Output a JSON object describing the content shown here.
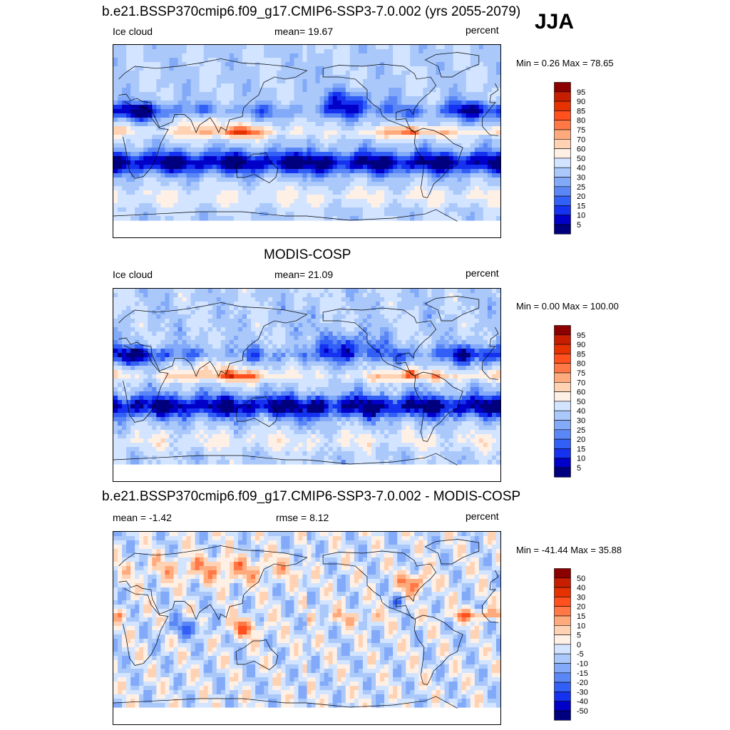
{
  "season": "JJA",
  "colors": {
    "cloud": [
      "#00007f",
      "#0000c8",
      "#1432ef",
      "#325ff5",
      "#5a87f5",
      "#82aaf8",
      "#aac8fa",
      "#d2e4ff",
      "#fff0e6",
      "#ffd2b4",
      "#ffaa7d",
      "#ff7846",
      "#ff501e",
      "#e63200",
      "#c81e00",
      "#8c0000"
    ],
    "diff": [
      "#00007f",
      "#0000c8",
      "#1432ef",
      "#325ff5",
      "#5a87f5",
      "#82aaf8",
      "#aac8fa",
      "#d2e4ff",
      "#fff0e6",
      "#ffd2b4",
      "#ffaa7d",
      "#ff7846",
      "#ff501e",
      "#e63200",
      "#c81e00",
      "#8c0000"
    ]
  },
  "panels": [
    {
      "title": "b.e21.BSSP370cmip6.f09_g17.CMIP6-SSP3-7.0.002 (yrs 2055-2079)",
      "left_label": "Ice cloud",
      "center_label": "mean=  19.67",
      "right_label": "percent",
      "minmax": "Min =   0.26 Max =  78.65",
      "colorbar_levels": [
        "5",
        "10",
        "15",
        "20",
        "25",
        "30",
        "40",
        "50",
        "60",
        "70",
        "75",
        "80",
        "85",
        "90",
        "95"
      ]
    },
    {
      "title": "MODIS-COSP",
      "left_label": "Ice cloud",
      "center_label": "mean=  21.09",
      "right_label": "percent",
      "minmax": "Min =   0.00 Max = 100.00",
      "colorbar_levels": [
        "5",
        "10",
        "15",
        "20",
        "25",
        "30",
        "40",
        "50",
        "60",
        "70",
        "75",
        "80",
        "85",
        "90",
        "95"
      ]
    },
    {
      "title": "b.e21.BSSP370cmip6.f09_g17.CMIP6-SSP3-7.0.002 - MODIS-COSP",
      "left_label": "mean =  -1.42",
      "center_label": "rmse =   8.12",
      "right_label": "percent",
      "minmax": "Min = -41.44 Max =  35.88",
      "colorbar_levels": [
        "-50",
        "-40",
        "-30",
        "-20",
        "-15",
        "-10",
        "-5",
        "0",
        "5",
        "10",
        "15",
        "20",
        "30",
        "40",
        "50"
      ]
    }
  ],
  "chart_data": [
    {
      "type": "heatmap",
      "title": "b.e21.BSSP370cmip6.f09_g17.CMIP6-SSP3-7.0.002 (yrs 2055-2079)",
      "variable": "Ice cloud",
      "units": "percent",
      "mean": 19.67,
      "min": 0.26,
      "max": 78.65,
      "contour_levels": [
        5,
        10,
        15,
        20,
        25,
        30,
        40,
        50,
        60,
        70,
        75,
        80,
        85,
        90,
        95
      ]
    },
    {
      "type": "heatmap",
      "title": "MODIS-COSP",
      "variable": "Ice cloud",
      "units": "percent",
      "mean": 21.09,
      "min": 0.0,
      "max": 100.0,
      "contour_levels": [
        5,
        10,
        15,
        20,
        25,
        30,
        40,
        50,
        60,
        70,
        75,
        80,
        85,
        90,
        95
      ]
    },
    {
      "type": "heatmap",
      "title": "b.e21.BSSP370cmip6.f09_g17.CMIP6-SSP3-7.0.002 - MODIS-COSP",
      "units": "percent",
      "mean": -1.42,
      "rmse": 8.12,
      "min": -41.44,
      "max": 35.88,
      "contour_levels": [
        -50,
        -40,
        -30,
        -20,
        -15,
        -10,
        -5,
        0,
        5,
        10,
        15,
        20,
        30,
        40,
        50
      ]
    }
  ]
}
